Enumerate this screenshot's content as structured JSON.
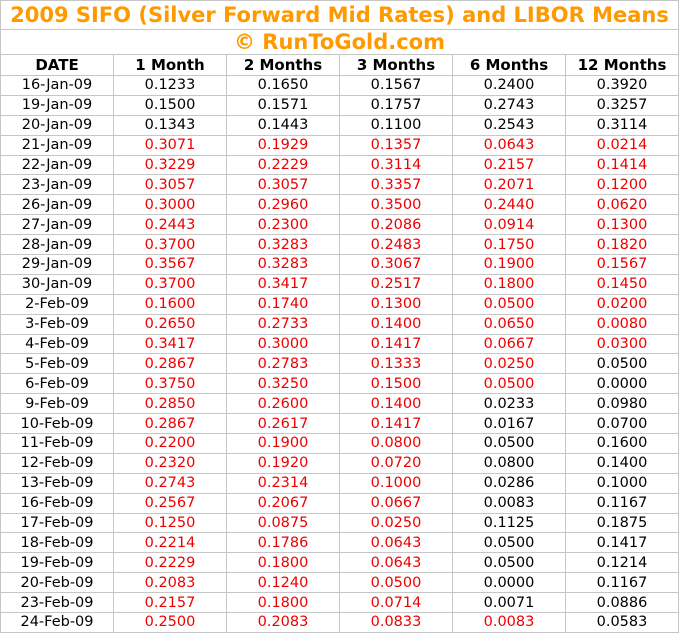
{
  "title": "2009 SIFO (Silver Forward Mid Rates) and LIBOR Means",
  "subtitle": "© RunToGold.com",
  "colors": {
    "accent_orange": "#ff9900",
    "negative_red": "#ee0000",
    "text_black": "#000000",
    "gridline_gray": "#c6c6c6",
    "background": "#ffffff"
  },
  "table": {
    "headers": [
      "DATE",
      "1 Month",
      "2 Months",
      "3 Months",
      "6 Months",
      "12 Months"
    ],
    "rows": [
      {
        "date": "16-Jan-09",
        "values": [
          "0.1233",
          "0.1650",
          "0.1567",
          "0.2400",
          "0.3920"
        ],
        "colors": [
          "black",
          "black",
          "black",
          "black",
          "black"
        ]
      },
      {
        "date": "19-Jan-09",
        "values": [
          "0.1500",
          "0.1571",
          "0.1757",
          "0.2743",
          "0.3257"
        ],
        "colors": [
          "black",
          "black",
          "black",
          "black",
          "black"
        ]
      },
      {
        "date": "20-Jan-09",
        "values": [
          "0.1343",
          "0.1443",
          "0.1100",
          "0.2543",
          "0.3114"
        ],
        "colors": [
          "black",
          "black",
          "black",
          "black",
          "black"
        ]
      },
      {
        "date": "21-Jan-09",
        "values": [
          "0.3071",
          "0.1929",
          "0.1357",
          "0.0643",
          "0.0214"
        ],
        "colors": [
          "red",
          "red",
          "red",
          "red",
          "red"
        ]
      },
      {
        "date": "22-Jan-09",
        "values": [
          "0.3229",
          "0.2229",
          "0.3114",
          "0.2157",
          "0.1414"
        ],
        "colors": [
          "red",
          "red",
          "red",
          "red",
          "red"
        ]
      },
      {
        "date": "23-Jan-09",
        "values": [
          "0.3057",
          "0.3057",
          "0.3357",
          "0.2071",
          "0.1200"
        ],
        "colors": [
          "red",
          "red",
          "red",
          "red",
          "red"
        ]
      },
      {
        "date": "26-Jan-09",
        "values": [
          "0.3000",
          "0.2960",
          "0.3500",
          "0.2440",
          "0.0620"
        ],
        "colors": [
          "red",
          "red",
          "red",
          "red",
          "red"
        ]
      },
      {
        "date": "27-Jan-09",
        "values": [
          "0.2443",
          "0.2300",
          "0.2086",
          "0.0914",
          "0.1300"
        ],
        "colors": [
          "red",
          "red",
          "red",
          "red",
          "red"
        ]
      },
      {
        "date": "28-Jan-09",
        "values": [
          "0.3700",
          "0.3283",
          "0.2483",
          "0.1750",
          "0.1820"
        ],
        "colors": [
          "red",
          "red",
          "red",
          "red",
          "red"
        ]
      },
      {
        "date": "29-Jan-09",
        "values": [
          "0.3567",
          "0.3283",
          "0.3067",
          "0.1900",
          "0.1567"
        ],
        "colors": [
          "red",
          "red",
          "red",
          "red",
          "red"
        ]
      },
      {
        "date": "30-Jan-09",
        "values": [
          "0.3700",
          "0.3417",
          "0.2517",
          "0.1800",
          "0.1450"
        ],
        "colors": [
          "red",
          "red",
          "red",
          "red",
          "red"
        ]
      },
      {
        "date": "2-Feb-09",
        "values": [
          "0.1600",
          "0.1740",
          "0.1300",
          "0.0500",
          "0.0200"
        ],
        "colors": [
          "red",
          "red",
          "red",
          "red",
          "red"
        ]
      },
      {
        "date": "3-Feb-09",
        "values": [
          "0.2650",
          "0.2733",
          "0.1400",
          "0.0650",
          "0.0080"
        ],
        "colors": [
          "red",
          "red",
          "red",
          "red",
          "red"
        ]
      },
      {
        "date": "4-Feb-09",
        "values": [
          "0.3417",
          "0.3000",
          "0.1417",
          "0.0667",
          "0.0300"
        ],
        "colors": [
          "red",
          "red",
          "red",
          "red",
          "red"
        ]
      },
      {
        "date": "5-Feb-09",
        "values": [
          "0.2867",
          "0.2783",
          "0.1333",
          "0.0250",
          "0.0500"
        ],
        "colors": [
          "red",
          "red",
          "red",
          "red",
          "black"
        ]
      },
      {
        "date": "6-Feb-09",
        "values": [
          "0.3750",
          "0.3250",
          "0.1500",
          "0.0500",
          "0.0000"
        ],
        "colors": [
          "red",
          "red",
          "red",
          "red",
          "black"
        ]
      },
      {
        "date": "9-Feb-09",
        "values": [
          "0.2850",
          "0.2600",
          "0.1400",
          "0.0233",
          "0.0980"
        ],
        "colors": [
          "red",
          "red",
          "red",
          "black",
          "black"
        ]
      },
      {
        "date": "10-Feb-09",
        "values": [
          "0.2867",
          "0.2617",
          "0.1417",
          "0.0167",
          "0.0700"
        ],
        "colors": [
          "red",
          "red",
          "red",
          "black",
          "black"
        ]
      },
      {
        "date": "11-Feb-09",
        "values": [
          "0.2200",
          "0.1900",
          "0.0800",
          "0.0500",
          "0.1600"
        ],
        "colors": [
          "red",
          "red",
          "red",
          "black",
          "black"
        ]
      },
      {
        "date": "12-Feb-09",
        "values": [
          "0.2320",
          "0.1920",
          "0.0720",
          "0.0800",
          "0.1400"
        ],
        "colors": [
          "red",
          "red",
          "red",
          "black",
          "black"
        ]
      },
      {
        "date": "13-Feb-09",
        "values": [
          "0.2743",
          "0.2314",
          "0.1000",
          "0.0286",
          "0.1000"
        ],
        "colors": [
          "red",
          "red",
          "red",
          "black",
          "black"
        ]
      },
      {
        "date": "16-Feb-09",
        "values": [
          "0.2567",
          "0.2067",
          "0.0667",
          "0.0083",
          "0.1167"
        ],
        "colors": [
          "red",
          "red",
          "red",
          "black",
          "black"
        ]
      },
      {
        "date": "17-Feb-09",
        "values": [
          "0.1250",
          "0.0875",
          "0.0250",
          "0.1125",
          "0.1875"
        ],
        "colors": [
          "red",
          "red",
          "red",
          "black",
          "black"
        ]
      },
      {
        "date": "18-Feb-09",
        "values": [
          "0.2214",
          "0.1786",
          "0.0643",
          "0.0500",
          "0.1417"
        ],
        "colors": [
          "red",
          "red",
          "red",
          "black",
          "black"
        ]
      },
      {
        "date": "19-Feb-09",
        "values": [
          "0.2229",
          "0.1800",
          "0.0643",
          "0.0500",
          "0.1214"
        ],
        "colors": [
          "red",
          "red",
          "red",
          "black",
          "black"
        ]
      },
      {
        "date": "20-Feb-09",
        "values": [
          "0.2083",
          "0.1240",
          "0.0500",
          "0.0000",
          "0.1167"
        ],
        "colors": [
          "red",
          "red",
          "red",
          "black",
          "black"
        ]
      },
      {
        "date": "23-Feb-09",
        "values": [
          "0.2157",
          "0.1800",
          "0.0714",
          "0.0071",
          "0.0886"
        ],
        "colors": [
          "red",
          "red",
          "red",
          "black",
          "black"
        ]
      },
      {
        "date": "24-Feb-09",
        "values": [
          "0.2500",
          "0.2083",
          "0.0833",
          "0.0083",
          "0.0583"
        ],
        "colors": [
          "red",
          "red",
          "red",
          "red",
          "black"
        ]
      }
    ]
  }
}
